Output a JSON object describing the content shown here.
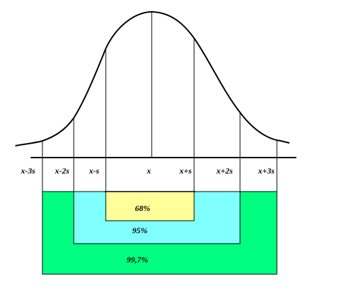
{
  "diagram": {
    "axis_labels": [
      "x-3s",
      "x-2s",
      "x-s",
      "x",
      "x+s",
      "x+2s",
      "x+3s"
    ],
    "bands": {
      "one_sigma": {
        "label": "68%",
        "color": "#ffff99"
      },
      "two_sigma": {
        "label": "95%",
        "color": "#80ffff"
      },
      "three_sigma": {
        "label": "99,7%",
        "color": "#00ff80"
      }
    },
    "curve_color": "#000000"
  }
}
